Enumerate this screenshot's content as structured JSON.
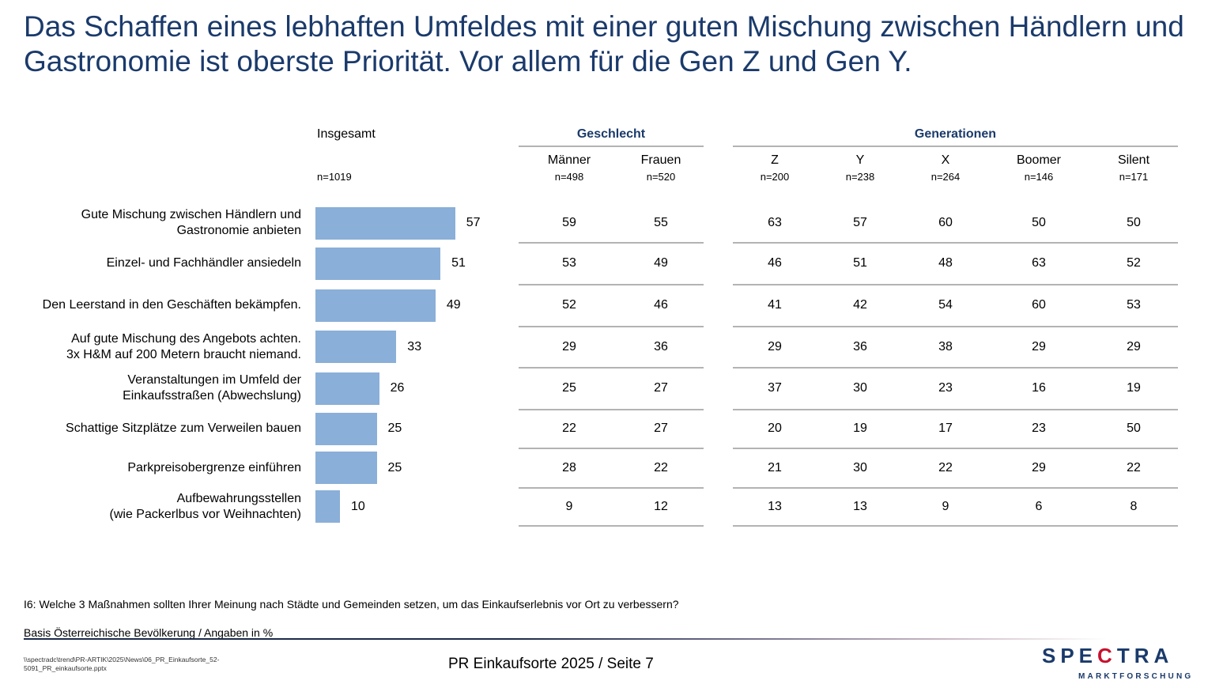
{
  "title": "Das Schaffen eines lebhaften Umfeldes mit einer guten Mischung zwischen Händlern und Gastronomie ist oberste Priorität. Vor allem für die Gen Z und Gen Y.",
  "colors": {
    "title": "#1a3a6b",
    "bar": "#8aafd8",
    "lines": "#b3b3b3",
    "logo_blue": "#1a3a6b",
    "logo_red": "#c8102e"
  },
  "table": {
    "total": {
      "label": "Insgesamt",
      "n": "n=1019"
    },
    "groups": [
      {
        "label": "Geschlecht",
        "columns": [
          {
            "label": "Männer",
            "n": "n=498"
          },
          {
            "label": "Frauen",
            "n": "n=520"
          }
        ]
      },
      {
        "label": "Generationen",
        "columns": [
          {
            "label": "Z",
            "n": "n=200"
          },
          {
            "label": "Y",
            "n": "n=238"
          },
          {
            "label": "X",
            "n": "n=264"
          },
          {
            "label": "Boomer",
            "n": "n=146"
          },
          {
            "label": "Silent",
            "n": "n=171"
          }
        ]
      }
    ]
  },
  "chart_data": {
    "type": "bar",
    "orientation": "horizontal",
    "title": "Insgesamt",
    "unit": "%",
    "categories": [
      "Gute Mischung zwischen Händlern und Gastronomie anbieten",
      "Einzel- und Fachhändler ansiedeln",
      "Den Leerstand in den Geschäften bekämpfen.",
      "Auf gute Mischung des Angebots achten. 3x H&M auf 200 Metern braucht niemand.",
      "Veranstaltungen im Umfeld der Einkaufsstraßen (Abwechslung)",
      "Schattige Sitzplätze zum Verweilen bauen",
      "Parkpreisobergrenze einführen",
      "Aufbewahrungsstellen (wie Packerlbus vor Weihnachten)"
    ],
    "category_lines": [
      [
        "Gute Mischung zwischen Händlern und",
        "Gastronomie anbieten"
      ],
      [
        "Einzel- und Fachhändler ansiedeln"
      ],
      [
        "Den Leerstand in den Geschäften bekämpfen."
      ],
      [
        "Auf gute Mischung des Angebots achten.",
        "3x H&M auf 200 Metern braucht niemand."
      ],
      [
        "Veranstaltungen im Umfeld der",
        "Einkaufsstraßen (Abwechslung)"
      ],
      [
        "Schattige Sitzplätze zum Verweilen bauen"
      ],
      [
        "Parkpreisobergrenze einführen"
      ],
      [
        "Aufbewahrungsstellen",
        "(wie Packerlbus vor Weihnachten)"
      ]
    ],
    "values": [
      57,
      51,
      49,
      33,
      26,
      25,
      25,
      10
    ],
    "xlim": [
      0,
      100
    ],
    "grid": false,
    "series": [
      {
        "name": "Männer",
        "values": [
          59,
          53,
          52,
          29,
          25,
          22,
          28,
          9
        ]
      },
      {
        "name": "Frauen",
        "values": [
          55,
          49,
          46,
          36,
          27,
          27,
          22,
          12
        ]
      },
      {
        "name": "Z",
        "values": [
          63,
          46,
          41,
          29,
          37,
          20,
          21,
          13
        ]
      },
      {
        "name": "Y",
        "values": [
          57,
          51,
          42,
          36,
          30,
          19,
          30,
          13
        ]
      },
      {
        "name": "X",
        "values": [
          60,
          48,
          54,
          38,
          23,
          17,
          22,
          9
        ]
      },
      {
        "name": "Boomer",
        "values": [
          50,
          63,
          60,
          29,
          16,
          23,
          29,
          6
        ]
      },
      {
        "name": "Silent",
        "values": [
          50,
          52,
          53,
          29,
          19,
          50,
          22,
          8
        ]
      }
    ]
  },
  "footer": {
    "question": "I6: Welche 3 Maßnahmen sollten Ihrer Meinung nach Städte und Gemeinden setzen, um das Einkaufserlebnis vor Ort zu verbessern?",
    "basis": "Basis Österreichische Bevölkerung / Angaben in %",
    "filepath": "\\\\spectradc\\trend\\PR-ARTIK\\2025\\News\\06_PR_Einkaufsorte_52-5091_PR_einkaufsorte.pptx",
    "page": "PR Einkaufsorte 2025  /  Seite 7"
  },
  "logo": {
    "text_before": "SPE",
    "text_c": "C",
    "text_after": "TRA",
    "subtitle": "MARKTFORSCHUNG"
  }
}
